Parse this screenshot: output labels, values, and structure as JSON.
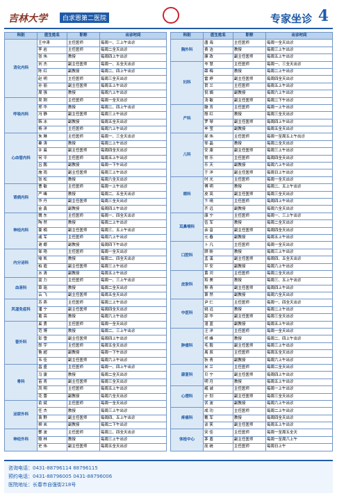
{
  "header": {
    "brand": "吉林大学",
    "hospital": "白求恩第二医院",
    "section": "专家坐诊",
    "page": "4"
  },
  "table": {
    "columns": [
      "科别",
      "医生姓名",
      "职称",
      "出诊时间"
    ],
    "left": [
      {
        "dept": "消化内科",
        "rows": [
          [
            "王中涛",
            "主任医师",
            "每周一、三上午出诊"
          ],
          [
            "李  岩",
            "主任医师",
            "每周二全天出诊"
          ],
          [
            "张  伟",
            "教授",
            "每周四上午出诊"
          ],
          [
            "刘  杰",
            "副主任医师",
            "每周一、五全天出诊"
          ],
          [
            "陈  红",
            "副教授",
            "每周二、四上午出诊"
          ],
          [
            "赵  明",
            "主任医师",
            "每周三全天出诊"
          ],
          [
            "孙  丽",
            "副主任医师",
            "每周五上午出诊"
          ],
          [
            "周  强",
            "教授",
            "每周六上午出诊"
          ]
        ]
      },
      {
        "dept": "呼吸内科",
        "rows": [
          [
            "吴  刚",
            "主任医师",
            "每周一全天出诊"
          ],
          [
            "郑  华",
            "教授",
            "每周二、四上午出诊"
          ],
          [
            "冯  静",
            "副主任医师",
            "每周三上午出诊"
          ],
          [
            "韩  冰",
            "副教授",
            "每周五全天出诊"
          ],
          [
            "杨  洋",
            "主任医师",
            "每周六上午出诊"
          ]
        ]
      },
      {
        "dept": "心血管内科",
        "rows": [
          [
            "朱  琳",
            "主任医师",
            "每周一、三全天出诊"
          ],
          [
            "秦  涛",
            "教授",
            "每周二上午出诊"
          ],
          [
            "许  晨",
            "副主任医师",
            "每周四全天出诊"
          ],
          [
            "何  平",
            "主任医师",
            "每周五上午出诊"
          ],
          [
            "吕  鹏",
            "副教授",
            "每周一下午出诊"
          ],
          [
            "施  雨",
            "副主任医师",
            "每周三上午出诊"
          ],
          [
            "张  松",
            "教授",
            "每周六全天出诊"
          ]
        ]
      },
      {
        "dept": "肾病内科",
        "rows": [
          [
            "曹  敏",
            "主任医师",
            "每周一上午出诊"
          ],
          [
            "严  峰",
            "教授",
            "每周二、五全天出诊"
          ],
          [
            "华  丹",
            "副主任医师",
            "每周三全天出诊"
          ],
          [
            "金  鑫",
            "副教授",
            "每周四上午出诊"
          ]
        ]
      },
      {
        "dept": "神经内科",
        "rows": [
          [
            "魏  东",
            "主任医师",
            "每周一、四全天出诊"
          ],
          [
            "陶  然",
            "教授",
            "每周二上午出诊"
          ],
          [
            "姜  楠",
            "副主任医师",
            "每周三、五上午出诊"
          ],
          [
            "戚  军",
            "主任医师",
            "每周六上午出诊"
          ],
          [
            "谢  娜",
            "副教授",
            "每周四下午出诊"
          ]
        ]
      },
      {
        "dept": "内分泌科",
        "rows": [
          [
            "邹  艳",
            "主任医师",
            "每周一全天出诊"
          ],
          [
            "喻  凯",
            "教授",
            "每周二、四全天出诊"
          ],
          [
            "柏  霞",
            "副主任医师",
            "每周三上午出诊"
          ],
          [
            "水  清",
            "副教授",
            "每周五上午出诊"
          ]
        ]
      },
      {
        "dept": "血液科",
        "rows": [
          [
            "窦  力",
            "主任医师",
            "每周一、三上午出诊"
          ],
          [
            "章  瑶",
            "教授",
            "每周二全天出诊"
          ],
          [
            "云  飞",
            "副主任医师",
            "每周五全天出诊"
          ]
        ]
      },
      {
        "dept": "风湿免疫科",
        "rows": [
          [
            "苏  燕",
            "主任医师",
            "每周二上午出诊"
          ],
          [
            "潘  宁",
            "副主任医师",
            "每周四全天出诊"
          ],
          [
            "葛  亮",
            "教授",
            "每周六上午出诊"
          ]
        ]
      },
      {
        "dept": "普外科",
        "rows": [
          [
            "奚  勇",
            "主任医师",
            "每周一全天出诊"
          ],
          [
            "范  博",
            "教授",
            "每周二、三上午出诊"
          ],
          [
            "彭  雪",
            "副主任医师",
            "每周四上午出诊"
          ],
          [
            "郎  宇",
            "主任医师",
            "每周五全天出诊"
          ],
          [
            "鲁  超",
            "副教授",
            "每周一下午出诊"
          ],
          [
            "韦  佳",
            "副主任医师",
            "每周六上午出诊"
          ]
        ]
      },
      {
        "dept": "骨科",
        "rows": [
          [
            "昌  盛",
            "主任医师",
            "每周一、四上午出诊"
          ],
          [
            "马  骏",
            "教授",
            "每周二全天出诊"
          ],
          [
            "苗  青",
            "副主任医师",
            "每周三全天出诊"
          ],
          [
            "凤  翔",
            "主任医师",
            "每周五上午出诊"
          ],
          [
            "花  蕾",
            "副教授",
            "每周六全天出诊"
          ]
        ]
      },
      {
        "dept": "泌尿外科",
        "rows": [
          [
            "俞  斌",
            "主任医师",
            "每周一全天出诊"
          ],
          [
            "任  杰",
            "教授",
            "每周三上午出诊"
          ],
          [
            "袁  野",
            "副主任医师",
            "每周四、五上午出诊"
          ],
          [
            "柳  岚",
            "副教授",
            "每周二下午出诊"
          ]
        ]
      },
      {
        "dept": "神经外科",
        "rows": [
          [
            "酆  波",
            "主任医师",
            "每周二、四全天出诊"
          ],
          [
            "鲍  林",
            "教授",
            "每周三上午出诊"
          ],
          [
            "史  伟",
            "副主任医师",
            "每周五全天出诊"
          ]
        ]
      }
    ],
    "right": [
      {
        "dept": "胸外科",
        "rows": [
          [
            "唐  海",
            "主任医师",
            "每周一全天出诊"
          ],
          [
            "费  洁",
            "教授",
            "每周三上午出诊"
          ],
          [
            "廉  政",
            "副主任医师",
            "每周五上午出诊"
          ]
        ]
      },
      {
        "dept": "妇科",
        "rows": [
          [
            "岑  慧",
            "主任医师",
            "每周一、三全天出诊"
          ],
          [
            "薛  梅",
            "教授",
            "每周二上午出诊"
          ],
          [
            "雷  婷",
            "副主任医师",
            "每周四全天出诊"
          ],
          [
            "贺  兰",
            "主任医师",
            "每周五上午出诊"
          ],
          [
            "倪  娟",
            "副教授",
            "每周六上午出诊"
          ],
          [
            "汤  敏",
            "副主任医师",
            "每周二下午出诊"
          ]
        ]
      },
      {
        "dept": "产科",
        "rows": [
          [
            "滕  芳",
            "主任医师",
            "每周一上午出诊"
          ],
          [
            "殷  红",
            "教授",
            "每周三全天出诊"
          ],
          [
            "罗  琴",
            "副主任医师",
            "每周四上午出诊"
          ],
          [
            "毕  莹",
            "副教授",
            "每周五全天出诊"
          ]
        ]
      },
      {
        "dept": "儿科",
        "rows": [
          [
            "郝  伟",
            "主任医师",
            "每周一至周五上午出诊"
          ],
          [
            "邬  晶",
            "教授",
            "每周二全天出诊"
          ],
          [
            "安  康",
            "副主任医师",
            "每周三上午出诊"
          ],
          [
            "常  乐",
            "主任医师",
            "每周四全天出诊"
          ],
          [
            "乐  天",
            "副教授",
            "每周六上午出诊"
          ],
          [
            "于  洋",
            "副主任医师",
            "每周日上午出诊"
          ]
        ]
      },
      {
        "dept": "眼科",
        "rows": [
          [
            "时  光",
            "主任医师",
            "每周一全天出诊"
          ],
          [
            "傅  明",
            "教授",
            "每周二、五上午出诊"
          ],
          [
            "皮  亮",
            "副主任医师",
            "每周三全天出诊"
          ],
          [
            "卞  晴",
            "主任医师",
            "每周四上午出诊"
          ],
          [
            "齐  远",
            "副教授",
            "每周六全天出诊"
          ]
        ]
      },
      {
        "dept": "耳鼻喉科",
        "rows": [
          [
            "康  宁",
            "主任医师",
            "每周一、三上午出诊"
          ],
          [
            "伍  军",
            "教授",
            "每周二全天出诊"
          ],
          [
            "余  音",
            "副主任医师",
            "每周四全天出诊"
          ],
          [
            "元  春",
            "副教授",
            "每周五上午出诊"
          ]
        ]
      },
      {
        "dept": "口腔科",
        "rows": [
          [
            "卜  凡",
            "主任医师",
            "每周一全天出诊"
          ],
          [
            "顾  盼",
            "教授",
            "每周三上午出诊"
          ],
          [
            "孟  溪",
            "副主任医师",
            "每周四、五全天出诊"
          ],
          [
            "平  安",
            "副教授",
            "每周六上午出诊"
          ]
        ]
      },
      {
        "dept": "皮肤科",
        "rows": [
          [
            "黄  河",
            "主任医师",
            "每周二全天出诊"
          ],
          [
            "和  美",
            "教授",
            "每周三、五上午出诊"
          ],
          [
            "穆  青",
            "副主任医师",
            "每周四上午出诊"
          ],
          [
            "萧  然",
            "副教授",
            "每周六全天出诊"
          ]
        ]
      },
      {
        "dept": "中医科",
        "rows": [
          [
            "尹  仁",
            "主任医师",
            "每周一、四全天出诊"
          ],
          [
            "姚  远",
            "教授",
            "每周二上午出诊"
          ],
          [
            "邵  华",
            "副主任医师",
            "每周三全天出诊"
          ],
          [
            "湛  蓝",
            "副教授",
            "每周五上午出诊"
          ]
        ]
      },
      {
        "dept": "肿瘤科",
        "rows": [
          [
            "汪  洋",
            "主任医师",
            "每周一全天出诊"
          ],
          [
            "祁  峰",
            "教授",
            "每周二、四上午出诊"
          ],
          [
            "毛  毅",
            "副主任医师",
            "每周三上午出诊"
          ],
          [
            "禹  辰",
            "主任医师",
            "每周五全天出诊"
          ],
          [
            "狄  青",
            "副教授",
            "每周六上午出诊"
          ]
        ]
      },
      {
        "dept": "康复科",
        "rows": [
          [
            "米  兰",
            "主任医师",
            "每周二全天出诊"
          ],
          [
            "贝  宁",
            "副主任医师",
            "每周四上午出诊"
          ],
          [
            "明  月",
            "教授",
            "每周五上午出诊"
          ]
        ]
      },
      {
        "dept": "心理科",
        "rows": [
          [
            "臧  诚",
            "主任医师",
            "每周一上午出诊"
          ],
          [
            "计  划",
            "副主任医师",
            "每周三全天出诊"
          ],
          [
            "伏  波",
            "副教授",
            "每周六上午出诊"
          ]
        ]
      },
      {
        "dept": "疼痛科",
        "rows": [
          [
            "成  功",
            "主任医师",
            "每周二上午出诊"
          ],
          [
            "戴  军",
            "教授",
            "每周四全天出诊"
          ],
          [
            "谈  笑",
            "副主任医师",
            "每周五上午出诊"
          ]
        ]
      },
      {
        "dept": "体检中心",
        "rows": [
          [
            "宋  佳",
            "主任医师",
            "每周一至周五全天"
          ],
          [
            "茅  盾",
            "副主任医师",
            "每周一至周六上午"
          ],
          [
            "庞  统",
            "主任医师",
            "每周日上午"
          ]
        ]
      }
    ]
  },
  "footer": {
    "lines": [
      "咨询电话：0431-88796114  88796115",
      "预约电话：0431-88796005  0431-88796006",
      "医院地址：长春市自强街218号"
    ]
  }
}
